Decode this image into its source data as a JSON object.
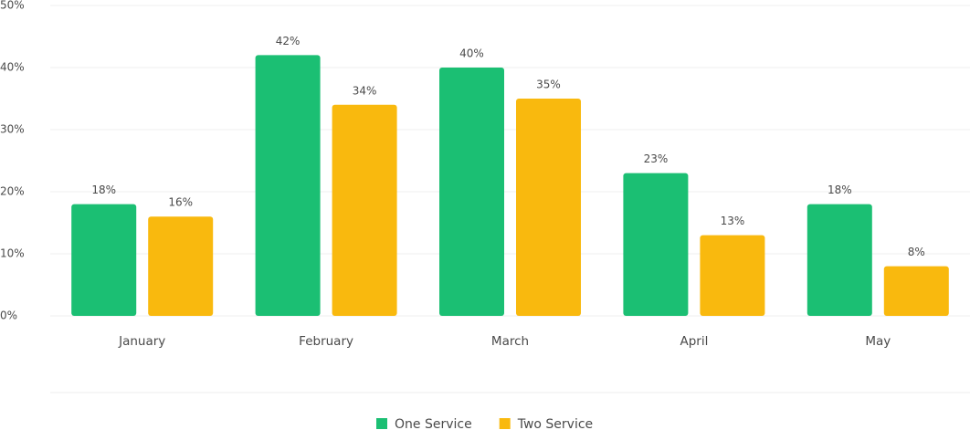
{
  "chart_data": {
    "type": "bar",
    "categories": [
      "January",
      "February",
      "March",
      "April",
      "May"
    ],
    "series": [
      {
        "name": "One Service",
        "color": "#1bbf73",
        "values": [
          18,
          42,
          40,
          23,
          18
        ],
        "value_labels": [
          "18%",
          "42%",
          "40%",
          "23%",
          "18%"
        ]
      },
      {
        "name": "Two Service",
        "color": "#f9b90e",
        "values": [
          16,
          34,
          35,
          13,
          8
        ],
        "value_labels": [
          "16%",
          "34%",
          "35%",
          "13%",
          "8%"
        ]
      }
    ],
    "ylim": [
      0,
      50
    ],
    "yticks": [
      {
        "value": 0,
        "label": "0%"
      },
      {
        "value": 10,
        "label": "10%"
      },
      {
        "value": 20,
        "label": "20%"
      },
      {
        "value": 30,
        "label": "30%"
      },
      {
        "value": 40,
        "label": "40%"
      },
      {
        "value": 50,
        "label": "50%"
      }
    ],
    "grid": true,
    "legend": "bottom"
  }
}
